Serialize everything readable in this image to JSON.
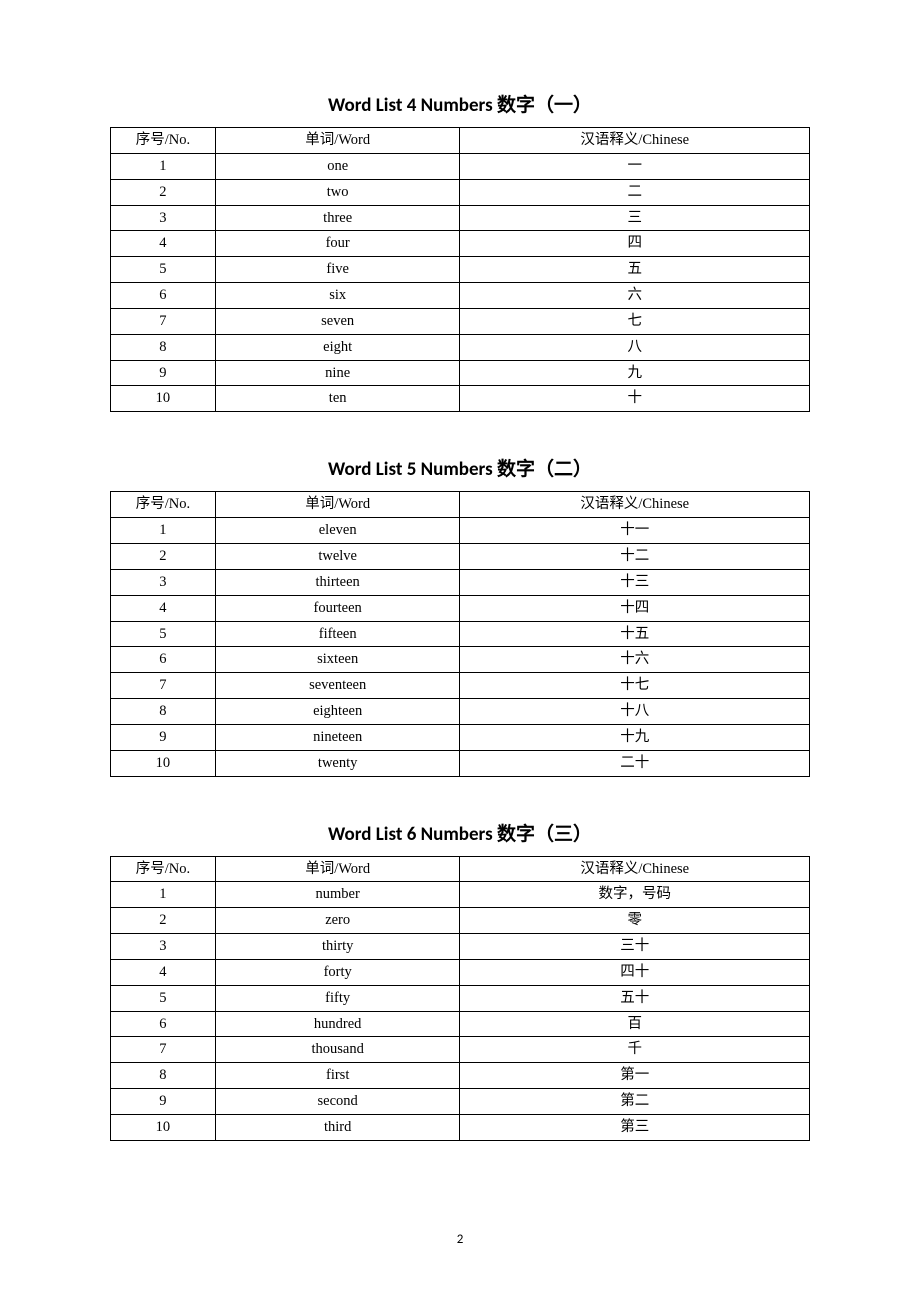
{
  "page_number": "2",
  "tables_meta": {
    "columns": [
      "序号/No.",
      "单词/Word",
      "汉语释义/Chinese"
    ],
    "col_widths_percent": [
      15,
      35,
      50
    ],
    "border_color": "#000000",
    "text_color": "#000000",
    "background_color": "#ffffff",
    "body_fontsize": 14.5,
    "title_fontsize": 19,
    "title_fontweight": "bold"
  },
  "sections": [
    {
      "title": "Word List 4 Numbers  数字（一）",
      "rows": [
        [
          "1",
          "one",
          "一"
        ],
        [
          "2",
          "two",
          "二"
        ],
        [
          "3",
          "three",
          "三"
        ],
        [
          "4",
          "four",
          "四"
        ],
        [
          "5",
          "five",
          "五"
        ],
        [
          "6",
          "six",
          "六"
        ],
        [
          "7",
          "seven",
          "七"
        ],
        [
          "8",
          "eight",
          "八"
        ],
        [
          "9",
          "nine",
          "九"
        ],
        [
          "10",
          "ten",
          "十"
        ]
      ]
    },
    {
      "title": "Word List 5 Numbers  数字（二）",
      "rows": [
        [
          "1",
          "eleven",
          "十一"
        ],
        [
          "2",
          "twelve",
          "十二"
        ],
        [
          "3",
          "thirteen",
          "十三"
        ],
        [
          "4",
          "fourteen",
          "十四"
        ],
        [
          "5",
          "fifteen",
          "十五"
        ],
        [
          "6",
          "sixteen",
          "十六"
        ],
        [
          "7",
          "seventeen",
          "十七"
        ],
        [
          "8",
          "eighteen",
          "十八"
        ],
        [
          "9",
          "nineteen",
          "十九"
        ],
        [
          "10",
          "twenty",
          "二十"
        ]
      ]
    },
    {
      "title": "Word List 6 Numbers  数字（三）",
      "rows": [
        [
          "1",
          "number",
          "数字，号码"
        ],
        [
          "2",
          "zero",
          "零"
        ],
        [
          "3",
          "thirty",
          "三十"
        ],
        [
          "4",
          "forty",
          "四十"
        ],
        [
          "5",
          "fifty",
          "五十"
        ],
        [
          "6",
          "hundred",
          "百"
        ],
        [
          "7",
          "thousand",
          "千"
        ],
        [
          "8",
          "first",
          "第一"
        ],
        [
          "9",
          "second",
          "第二"
        ],
        [
          "10",
          "third",
          "第三"
        ]
      ]
    }
  ]
}
